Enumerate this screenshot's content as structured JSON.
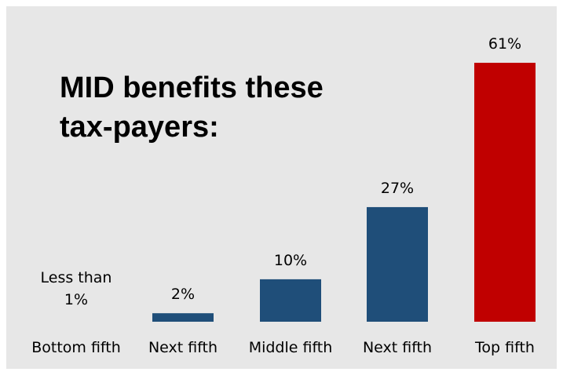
{
  "chart_data": {
    "type": "bar",
    "title_lines": [
      "MID benefits these",
      "tax-payers:"
    ],
    "categories": [
      "Bottom fifth",
      "Next fifth",
      "Middle fifth",
      "Next fifth",
      "Top fifth"
    ],
    "values": [
      0.5,
      2,
      10,
      27,
      61
    ],
    "data_labels": [
      [
        "Less than",
        "1%"
      ],
      [
        "2%"
      ],
      [
        "10%"
      ],
      [
        "27%"
      ],
      [
        "61%"
      ]
    ],
    "colors": [
      "#1f4e79",
      "#1f4e79",
      "#1f4e79",
      "#1f4e79",
      "#c00000"
    ],
    "background": "#e7e7e7",
    "ylim": [
      0,
      61
    ],
    "grid": false,
    "legend": "none"
  }
}
